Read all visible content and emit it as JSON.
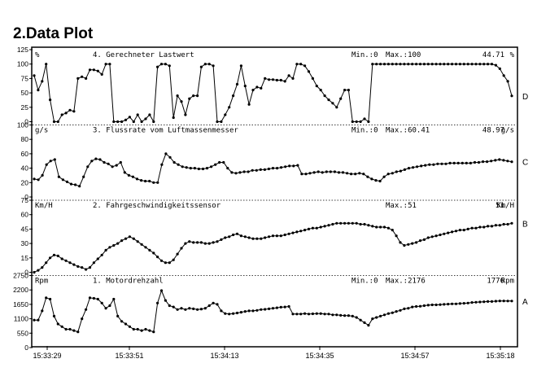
{
  "page_title": "2.Data Plot",
  "x_ticks": [
    "15:33:29",
    "15:33:51",
    "15:34:13",
    "15:34:35",
    "15:34:57",
    "15:35:18"
  ],
  "chart_data": [
    {
      "type": "line",
      "letter": "D",
      "unit": "%",
      "title": "4. Gerechneter Lastwert",
      "min_label": "Min.:0",
      "max_label": "Max.:100",
      "current_value": "44.71",
      "ylim": [
        0,
        125
      ],
      "yticks": [
        "0",
        "25",
        "50",
        "75",
        "100",
        "125"
      ],
      "series": [
        {
          "values": [
            80,
            55,
            70,
            100,
            38,
            0,
            0,
            12,
            15,
            20,
            18,
            75,
            78,
            75,
            90,
            90,
            88,
            82,
            100,
            100,
            0,
            0,
            0,
            3,
            8,
            0,
            12,
            0,
            5,
            12,
            0,
            95,
            100,
            100,
            97,
            7,
            45,
            35,
            12,
            40,
            45,
            45,
            95,
            100,
            100,
            97,
            0,
            0,
            12,
            25,
            45,
            65,
            97,
            62,
            30,
            55,
            60,
            58,
            75,
            73,
            73,
            72,
            72,
            70,
            80,
            75,
            100,
            100,
            97,
            87,
            75,
            62,
            55,
            45,
            38,
            32,
            25,
            40,
            55,
            55,
            0,
            0,
            0,
            5,
            0,
            100,
            100,
            100,
            100,
            100,
            100,
            100,
            100,
            100,
            100,
            100,
            100,
            100,
            100,
            100,
            100,
            100,
            100,
            100,
            100,
            100,
            100,
            100,
            100,
            100,
            100,
            100,
            100,
            100,
            100,
            100,
            98,
            92,
            80,
            70,
            44.71
          ]
        }
      ]
    },
    {
      "type": "line",
      "letter": "C",
      "unit": "g/s",
      "title": "3. Flussrate vom Luftmassenmesser",
      "min_label": "Min.:0",
      "max_label": "Max.:60.41",
      "current_value": "48.97",
      "ylim": [
        0,
        100
      ],
      "yticks": [
        "0",
        "20",
        "40",
        "60",
        "80",
        "100"
      ],
      "series": [
        {
          "values": [
            25,
            24,
            30,
            45,
            50,
            52,
            28,
            24,
            21,
            18,
            17,
            15,
            28,
            42,
            50,
            53,
            52,
            48,
            46,
            42,
            44,
            48,
            34,
            30,
            28,
            25,
            23,
            22,
            22,
            20,
            20,
            45,
            60,
            55,
            48,
            45,
            42,
            41,
            40,
            40,
            39,
            39,
            40,
            42,
            45,
            48,
            48,
            40,
            34,
            33,
            34,
            35,
            35,
            37,
            37,
            38,
            38,
            39,
            40,
            40,
            41,
            42,
            43,
            43,
            44,
            32,
            32,
            33,
            34,
            35,
            34,
            35,
            35,
            35,
            34,
            34,
            33,
            32,
            32,
            33,
            32,
            28,
            25,
            23,
            22,
            28,
            32,
            33,
            35,
            36,
            38,
            40,
            41,
            42,
            43,
            44,
            45,
            45,
            46,
            46,
            46,
            47,
            47,
            47,
            47,
            47,
            47,
            48,
            48,
            49,
            49,
            50,
            51,
            52,
            51,
            50,
            48.97
          ]
        }
      ]
    },
    {
      "type": "line",
      "letter": "B",
      "unit": "Km/H",
      "title": "2. Fahrgeschwindigkeitssensor",
      "min_label": "",
      "max_label": "Max.:51",
      "current_value": "51",
      "ylim": [
        0,
        75
      ],
      "yticks": [
        "0",
        "15",
        "30",
        "45",
        "60",
        "75"
      ],
      "series": [
        {
          "values": [
            0,
            2,
            5,
            10,
            15,
            18,
            17,
            14,
            12,
            10,
            8,
            6,
            5,
            3,
            5,
            10,
            14,
            18,
            23,
            26,
            28,
            30,
            33,
            35,
            37,
            35,
            32,
            29,
            26,
            23,
            20,
            16,
            12,
            10,
            10,
            13,
            19,
            25,
            30,
            32,
            31,
            31,
            31,
            30,
            30,
            31,
            32,
            34,
            36,
            37,
            39,
            40,
            38,
            37,
            36,
            35,
            35,
            35,
            36,
            37,
            38,
            38,
            38,
            39,
            40,
            41,
            42,
            43,
            44,
            45,
            46,
            46,
            47,
            48,
            49,
            50,
            51,
            51,
            51,
            51,
            51,
            51,
            50,
            50,
            49,
            48,
            47,
            47,
            47,
            46,
            44,
            38,
            31,
            28,
            29,
            30,
            31,
            33,
            34,
            36,
            37,
            38,
            39,
            40,
            41,
            42,
            43,
            44,
            44,
            45,
            46,
            46,
            47,
            47,
            48,
            48,
            49,
            49,
            50,
            50,
            51
          ]
        }
      ]
    },
    {
      "type": "line",
      "letter": "A",
      "unit": "Rpm",
      "title": "1. Motordrehzahl",
      "min_label": "Min.:0",
      "max_label": "Max.:2176",
      "current_value": "1776",
      "ylim": [
        0,
        2750
      ],
      "yticks": [
        "0",
        "550",
        "1100",
        "1650",
        "2200",
        "2750"
      ],
      "series": [
        {
          "values": [
            1050,
            1050,
            1400,
            1900,
            1850,
            1200,
            900,
            800,
            700,
            700,
            650,
            600,
            1100,
            1450,
            1900,
            1880,
            1850,
            1700,
            1500,
            1600,
            1850,
            1200,
            1000,
            900,
            800,
            700,
            700,
            650,
            700,
            650,
            600,
            1700,
            2176,
            1800,
            1600,
            1550,
            1450,
            1500,
            1450,
            1500,
            1480,
            1450,
            1470,
            1500,
            1600,
            1700,
            1650,
            1400,
            1300,
            1280,
            1300,
            1320,
            1350,
            1380,
            1400,
            1400,
            1420,
            1450,
            1460,
            1480,
            1500,
            1520,
            1540,
            1550,
            1570,
            1280,
            1280,
            1280,
            1300,
            1280,
            1290,
            1300,
            1300,
            1280,
            1280,
            1250,
            1250,
            1230,
            1220,
            1220,
            1200,
            1150,
            1050,
            950,
            850,
            1100,
            1150,
            1200,
            1250,
            1300,
            1330,
            1380,
            1420,
            1480,
            1500,
            1550,
            1570,
            1580,
            1600,
            1620,
            1630,
            1630,
            1640,
            1650,
            1660,
            1670,
            1670,
            1680,
            1690,
            1700,
            1720,
            1730,
            1740,
            1750,
            1760,
            1760,
            1770,
            1780,
            1780,
            1776,
            1776
          ]
        }
      ]
    }
  ]
}
